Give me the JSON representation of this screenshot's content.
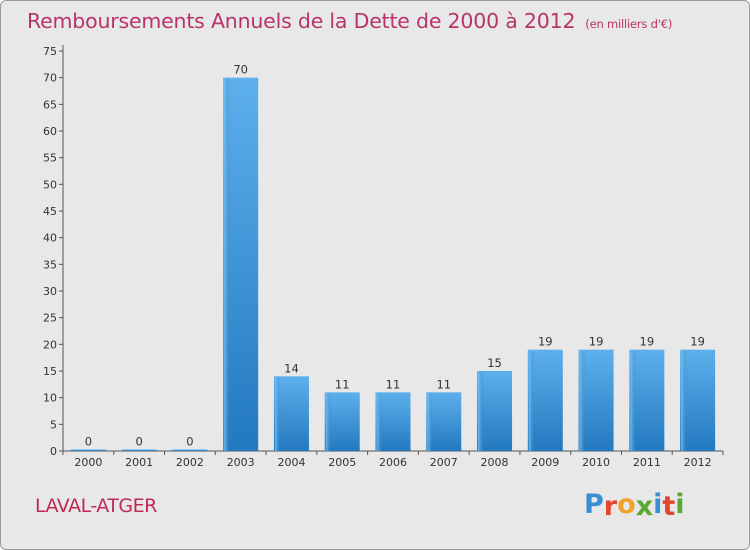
{
  "header": {
    "title": "Remboursements Annuels de la Dette de 2000 à 2012",
    "unit": "(en milliers d'€)"
  },
  "commune": "LAVAL-ATGER",
  "logo": {
    "letters": [
      "P",
      "r",
      "o",
      "x",
      "i",
      "t",
      "i"
    ],
    "colors": [
      "#3a8ed4",
      "#e3462c",
      "#f0a22a",
      "#5aa832",
      "#3a8ed4",
      "#e3462c",
      "#5aa832"
    ]
  },
  "chart_data": {
    "type": "bar",
    "categories": [
      "2000",
      "2001",
      "2002",
      "2003",
      "2004",
      "2005",
      "2006",
      "2007",
      "2008",
      "2009",
      "2010",
      "2011",
      "2012"
    ],
    "values": [
      0,
      0,
      0,
      70,
      14,
      11,
      11,
      11,
      15,
      19,
      19,
      19,
      19
    ],
    "data_labels": [
      "0",
      "0",
      "0",
      "70",
      "14",
      "11",
      "11",
      "11",
      "15",
      "19",
      "19",
      "19",
      "19"
    ],
    "ylim": [
      0,
      75
    ],
    "yticks": [
      0,
      5,
      10,
      15,
      20,
      25,
      30,
      35,
      40,
      45,
      50,
      55,
      60,
      65,
      70,
      75
    ],
    "grid": false,
    "bar_color": "#3d97dc"
  }
}
